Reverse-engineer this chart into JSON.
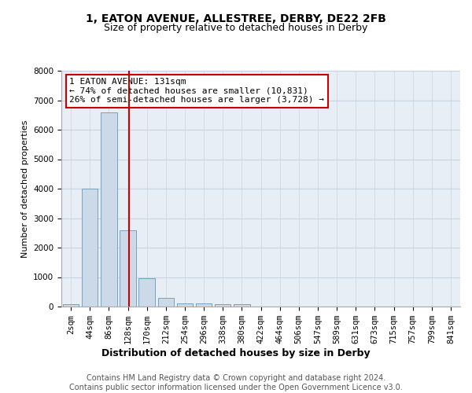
{
  "title1": "1, EATON AVENUE, ALLESTREE, DERBY, DE22 2FB",
  "title2": "Size of property relative to detached houses in Derby",
  "xlabel": "Distribution of detached houses by size in Derby",
  "ylabel": "Number of detached properties",
  "bar_labels": [
    "2sqm",
    "44sqm",
    "86sqm",
    "128sqm",
    "170sqm",
    "212sqm",
    "254sqm",
    "296sqm",
    "338sqm",
    "380sqm",
    "422sqm",
    "464sqm",
    "506sqm",
    "547sqm",
    "589sqm",
    "631sqm",
    "673sqm",
    "715sqm",
    "757sqm",
    "799sqm",
    "841sqm"
  ],
  "bar_heights": [
    75,
    4000,
    6600,
    2600,
    950,
    300,
    120,
    105,
    75,
    75,
    0,
    0,
    0,
    0,
    0,
    0,
    0,
    0,
    0,
    0,
    0
  ],
  "bar_color": "#ccd9e8",
  "bar_edge_color": "#6699bb",
  "property_sqm": 131,
  "annotation_text": "1 EATON AVENUE: 131sqm\n← 74% of detached houses are smaller (10,831)\n26% of semi-detached houses are larger (3,728) →",
  "box_color": "#ffffff",
  "box_edge_color": "#cc0000",
  "ylim": [
    0,
    8000
  ],
  "yticks": [
    0,
    1000,
    2000,
    3000,
    4000,
    5000,
    6000,
    7000,
    8000
  ],
  "grid_color": "#c8d4e4",
  "background_color": "#e8eef6",
  "footer": "Contains HM Land Registry data © Crown copyright and database right 2024.\nContains public sector information licensed under the Open Government Licence v3.0.",
  "title1_fontsize": 10,
  "title2_fontsize": 9,
  "xlabel_fontsize": 9,
  "ylabel_fontsize": 8,
  "tick_fontsize": 7.5,
  "annotation_fontsize": 8,
  "footer_fontsize": 7
}
